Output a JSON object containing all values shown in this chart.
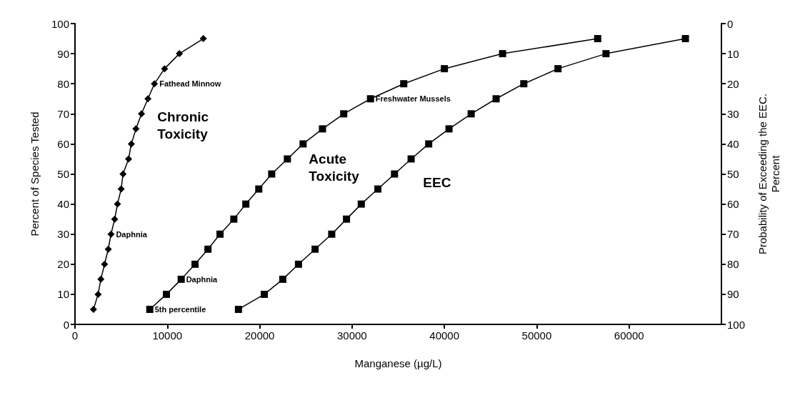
{
  "chart_data": {
    "type": "line",
    "xlabel": "Manganese (µg/L)",
    "ylabel": "Percent of Species Tested",
    "y2label": "Probability of Exceeding the EEC.\nPercent",
    "xlim": [
      0,
      70000
    ],
    "xticks": [
      0,
      10000,
      20000,
      30000,
      40000,
      50000,
      60000
    ],
    "ylim": [
      0,
      100
    ],
    "yticks": [
      0,
      10,
      20,
      30,
      40,
      50,
      60,
      70,
      80,
      90,
      100
    ],
    "y2lim": [
      100,
      0
    ],
    "y2ticks": [
      0,
      10,
      20,
      30,
      40,
      50,
      60,
      70,
      80,
      90,
      100
    ],
    "grid": false,
    "legend": false,
    "line_style": "solid",
    "series": [
      {
        "name": "Chronic Toxicity",
        "color": "#000000",
        "marker": "diamond",
        "x": [
          2000,
          2500,
          2800,
          3200,
          3600,
          3900,
          4300,
          4600,
          5000,
          5200,
          5800,
          6100,
          6600,
          7200,
          7900,
          8600,
          9700,
          11300,
          13900
        ],
        "values": [
          5,
          10,
          15,
          20,
          25,
          30,
          35,
          40,
          45,
          50,
          55,
          60,
          65,
          70,
          75,
          80,
          85,
          90,
          95
        ]
      },
      {
        "name": "Acute Toxicity",
        "color": "#000000",
        "marker": "square",
        "x": [
          8100,
          9900,
          11500,
          13000,
          14400,
          15700,
          17200,
          18500,
          19900,
          21300,
          23000,
          24700,
          26800,
          29100,
          32000,
          35600,
          40000,
          46300,
          56600
        ],
        "values": [
          5,
          10,
          15,
          20,
          25,
          30,
          35,
          40,
          45,
          50,
          55,
          60,
          65,
          70,
          75,
          80,
          85,
          90,
          95
        ]
      },
      {
        "name": "EEC",
        "color": "#000000",
        "marker": "square",
        "axis": "y2",
        "x": [
          17700,
          20500,
          22500,
          24200,
          26000,
          27800,
          29400,
          31000,
          32800,
          34600,
          36400,
          38300,
          40500,
          42900,
          45600,
          48600,
          52300,
          57500,
          66100
        ],
        "values": [
          95,
          90,
          85,
          80,
          75,
          70,
          65,
          60,
          55,
          50,
          45,
          40,
          35,
          30,
          25,
          20,
          15,
          10,
          5
        ]
      }
    ],
    "annotations": [
      {
        "text": "Fathead Minnow",
        "x": 8600,
        "y": 80
      },
      {
        "text": "Daphnia",
        "x": 3900,
        "y": 30
      },
      {
        "text": "Freshwater Mussels",
        "x": 32000,
        "y": 75
      },
      {
        "text": "Daphnia",
        "x": 11500,
        "y": 15
      },
      {
        "text": "5th percentile",
        "x": 8100,
        "y": 5
      }
    ]
  }
}
